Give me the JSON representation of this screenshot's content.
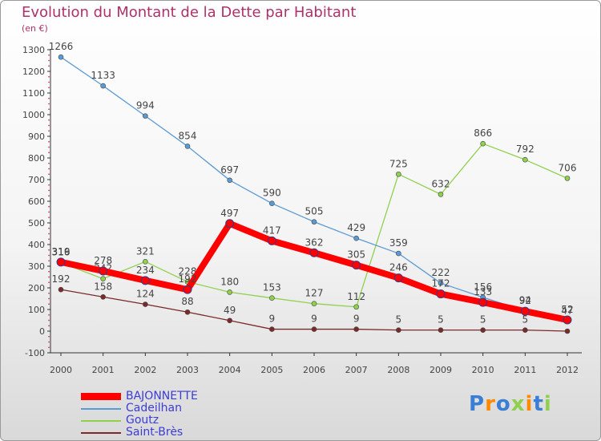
{
  "title": "Evolution du Montant de la Dette par Habitant",
  "unit_label": "(en €)",
  "logo_text": "Proxiti",
  "chart_data": {
    "type": "line",
    "x": [
      2000,
      2001,
      2002,
      2003,
      2004,
      2005,
      2006,
      2007,
      2008,
      2009,
      2010,
      2011,
      2012
    ],
    "ylim": [
      -100,
      1300
    ],
    "yticks": [
      -100,
      0,
      100,
      200,
      300,
      400,
      500,
      600,
      700,
      800,
      900,
      1000,
      1100,
      1200,
      1300
    ],
    "grid": false,
    "legend_position": "bottom-left",
    "series": [
      {
        "name": "BAJONNETTE",
        "color": "#ff0000",
        "values": [
          319,
          278,
          234,
          192,
          497,
          417,
          362,
          305,
          246,
          172,
          133,
          92,
          52
        ]
      },
      {
        "name": "Cadeilhan",
        "color": "#5b9bd5",
        "values": [
          1266,
          1133,
          994,
          854,
          697,
          590,
          505,
          429,
          359,
          222,
          156,
          94,
          47
        ]
      },
      {
        "name": "Goutz",
        "color": "#8fd14f",
        "values": [
          316,
          242,
          321,
          228,
          180,
          153,
          127,
          112,
          725,
          632,
          866,
          792,
          706
        ]
      },
      {
        "name": "Saint-Brès",
        "color": "#7a2a2a",
        "values": [
          192,
          158,
          124,
          88,
          49,
          9,
          9,
          9,
          5,
          5,
          5,
          5,
          0
        ]
      }
    ]
  }
}
